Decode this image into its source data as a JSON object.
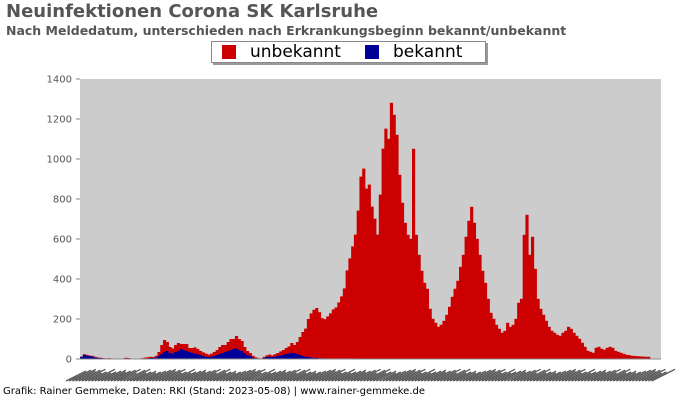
{
  "header": {
    "title": "Neuinfektionen Corona SK Karlsruhe",
    "subtitle": "Nach Meldedatum, unterschieden nach Erkrankungsbeginn bekannt/unbekannt"
  },
  "footer": {
    "credit": "Grafik: Rainer Gemmeke, Daten: RKI (Stand: 2023-05-08) | www.rainer-gemmeke.de"
  },
  "colors": {
    "plot_background": "#cccccc",
    "unbekannt": "#cc0000",
    "bekannt": "#000099",
    "axis_text": "#555555"
  },
  "chart_data": {
    "type": "bar",
    "stacked": true,
    "title": "Neuinfektionen Corona SK Karlsruhe",
    "subtitle": "Nach Meldedatum, unterschieden nach Erkrankungsbeginn bekannt/unbekannt",
    "xlabel": "",
    "ylabel": "",
    "ylim": [
      0,
      1400
    ],
    "yticks": [
      0,
      200,
      400,
      600,
      800,
      1000,
      1200,
      1400
    ],
    "grid": false,
    "legend_position": "top-center",
    "x_tick_labels": "dates (illegible)",
    "series": [
      {
        "name": "unbekannt",
        "color": "#cc0000",
        "values": [
          2,
          4,
          3,
          2,
          4,
          3,
          2,
          1,
          1,
          1,
          2,
          1,
          0,
          0,
          0,
          1,
          4,
          3,
          1,
          0,
          1,
          1,
          2,
          4,
          5,
          6,
          4,
          8,
          20,
          45,
          60,
          45,
          30,
          25,
          35,
          40,
          25,
          30,
          35,
          20,
          25,
          30,
          25,
          20,
          18,
          15,
          12,
          15,
          20,
          25,
          35,
          40,
          35,
          45,
          55,
          50,
          60,
          55,
          50,
          30,
          20,
          15,
          8,
          4,
          2,
          2,
          5,
          8,
          10,
          8,
          12,
          15,
          20,
          25,
          30,
          35,
          50,
          40,
          60,
          90,
          120,
          140,
          190,
          220,
          240,
          250,
          230,
          200,
          195,
          210,
          225,
          245,
          255,
          280,
          310,
          350,
          440,
          500,
          560,
          620,
          740,
          910,
          950,
          850,
          870,
          760,
          700,
          620,
          820,
          1050,
          1150,
          1100,
          1280,
          1220,
          1120,
          920,
          780,
          680,
          620,
          600,
          1050,
          620,
          520,
          440,
          380,
          350,
          250,
          200,
          180,
          160,
          170,
          190,
          220,
          260,
          310,
          350,
          390,
          460,
          520,
          610,
          690,
          760,
          680,
          600,
          520,
          440,
          380,
          300,
          230,
          200,
          170,
          150,
          130,
          140,
          180,
          160,
          170,
          200,
          280,
          300,
          620,
          720,
          520,
          610,
          450,
          300,
          250,
          220,
          190,
          160,
          140,
          130,
          120,
          115,
          130,
          140,
          160,
          150,
          130,
          115,
          100,
          80,
          60,
          40,
          35,
          30,
          55,
          60,
          50,
          45,
          55,
          60,
          55,
          40,
          35,
          30,
          25,
          20,
          18,
          15,
          14,
          13,
          12,
          11,
          10,
          10
        ]
      },
      {
        "name": "bekannt",
        "color": "#000099",
        "values": [
          10,
          20,
          18,
          15,
          12,
          8,
          6,
          5,
          3,
          2,
          2,
          1,
          0,
          0,
          0,
          1,
          2,
          2,
          1,
          0,
          1,
          1,
          2,
          3,
          4,
          5,
          6,
          8,
          15,
          25,
          35,
          40,
          30,
          28,
          35,
          40,
          50,
          45,
          40,
          35,
          30,
          28,
          25,
          20,
          15,
          12,
          10,
          12,
          15,
          20,
          25,
          30,
          35,
          40,
          45,
          50,
          55,
          45,
          40,
          30,
          20,
          15,
          8,
          4,
          2,
          1,
          6,
          10,
          12,
          10,
          12,
          15,
          18,
          20,
          25,
          28,
          30,
          30,
          25,
          20,
          15,
          12,
          10,
          8,
          6,
          5,
          4,
          4,
          4,
          3,
          3,
          3,
          3,
          3,
          3,
          3,
          3,
          3,
          3,
          2,
          2,
          2,
          2,
          2,
          2,
          2,
          2,
          2,
          2,
          2,
          2,
          1,
          1,
          1,
          1,
          1,
          1,
          1,
          1,
          1,
          1,
          1,
          1,
          1,
          1,
          1,
          1,
          1,
          1,
          1,
          1,
          1,
          1,
          1,
          1,
          1,
          1,
          1,
          1,
          1,
          1,
          1,
          1,
          1,
          1,
          1,
          1,
          1,
          1,
          1,
          1,
          1,
          1,
          1,
          1,
          1,
          1,
          1,
          1,
          1,
          1,
          1,
          1,
          1,
          1,
          1,
          1,
          1,
          1,
          1,
          1,
          1,
          1,
          1,
          1,
          1,
          1,
          1,
          1,
          1,
          1,
          1,
          1,
          1,
          1,
          1,
          1,
          1,
          1,
          1,
          1,
          1,
          1,
          1,
          1,
          1,
          1,
          1,
          1,
          1,
          1,
          1,
          1,
          1,
          1,
          1,
          1,
          1,
          1,
          1
        ]
      }
    ]
  }
}
